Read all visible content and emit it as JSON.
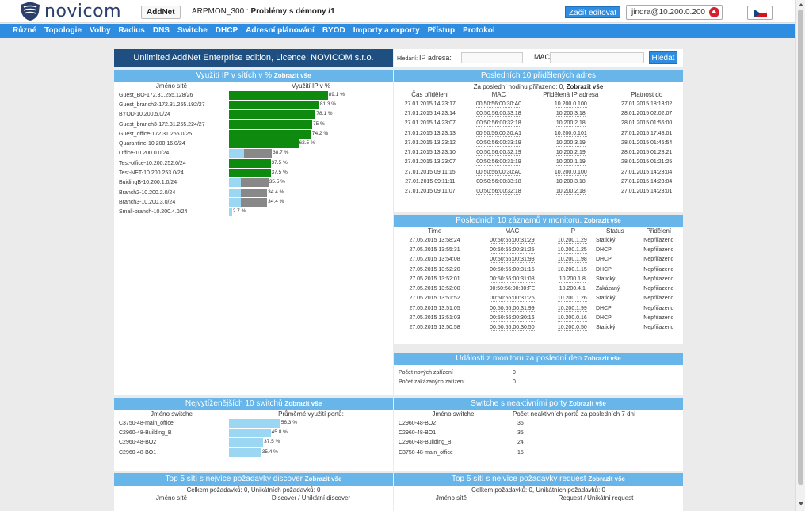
{
  "header": {
    "logo_text": "novicom",
    "addnet_label": "AddNet",
    "title_prefix": "ARPMON_300 : ",
    "title_bold": "Problémy s démony /1",
    "edit_label": "Začít editovat",
    "user": "jindra@10.200.0.200"
  },
  "nav": [
    "Různé",
    "Topologie",
    "Volby",
    "Radius",
    "DNS",
    "Switche",
    "DHCP",
    "Adresní plánování",
    "BYOD",
    "Importy a exporty",
    "Přístup",
    "Protokol"
  ],
  "license": "Unlimited AddNet Enterprise edition, Licence: NOVICOM s.r.o.",
  "search": {
    "ip_label_small": "Hledání:",
    "ip_label": "IP adresa:",
    "mac_label": "MAC:",
    "button": "Hledat"
  },
  "ip_usage": {
    "title": "Využití IP v sítích v %",
    "show_all": "Zobrazit vše",
    "col_name": "Jméno sítě",
    "col_usage": "Využití IP v %",
    "rows": [
      {
        "name": "Guest_BO-172.31.255.128/26",
        "pct": 89.1,
        "label": "89.1 %",
        "color": "#0e8a0e",
        "gray": 0
      },
      {
        "name": "Guest_branch2-172.31.255.192/27",
        "pct": 81.3,
        "label": "81.3 %",
        "color": "#0e8a0e",
        "gray": 0
      },
      {
        "name": "BYOD-10.200.5.0/24",
        "pct": 78.1,
        "label": "78.1 %",
        "color": "#0e8a0e",
        "gray": 0
      },
      {
        "name": "Guest_branch3-172.31.255.224/27",
        "pct": 75,
        "label": "75 %",
        "color": "#0e8a0e",
        "gray": 0
      },
      {
        "name": "Guest_office-172.31.255.0/25",
        "pct": 74.2,
        "label": "74.2 %",
        "color": "#0e8a0e",
        "gray": 0
      },
      {
        "name": "Quarantine-10.200.16.0/24",
        "pct": 62.5,
        "label": "62.5 %",
        "color": "#0e8a0e",
        "gray": 0
      },
      {
        "name": "Office-10.200.0.0/24",
        "pct": 38.7,
        "label": "38.7 %",
        "color": "#9bd7f2",
        "gray": 25
      },
      {
        "name": "Test-office-10.200.252.0/24",
        "pct": 37.5,
        "label": "37.5 %",
        "color": "#0e8a0e",
        "gray": 0
      },
      {
        "name": "Test-NET-10.200.253.0/24",
        "pct": 37.5,
        "label": "37.5 %",
        "color": "#0e8a0e",
        "gray": 0
      },
      {
        "name": "BuidingB-10.200.1.0/24",
        "pct": 35.5,
        "label": "35.5 %",
        "color": "#9bd7f2",
        "gray": 25
      },
      {
        "name": "Branch2-10.200.2.0/24",
        "pct": 34.4,
        "label": "34.4 %",
        "color": "#9bd7f2",
        "gray": 24
      },
      {
        "name": "Branch3-10.200.3.0/24",
        "pct": 34.4,
        "label": "34.4 %",
        "color": "#9bd7f2",
        "gray": 24
      },
      {
        "name": "Small-branch-10.200.4.0/24",
        "pct": 2.7,
        "label": "2.7 %",
        "color": "#9bd7f2",
        "gray": 0
      }
    ]
  },
  "last_assigned": {
    "title": "Posledních 10 přidělených adres",
    "subtitle": "Za poslední hodinu přiřazeno: 0,",
    "show_all": "Zobrazit vše",
    "cols": [
      "Čas přidělení",
      "MAC",
      "Přidělená IP adresa",
      "Platnost do"
    ],
    "rows": [
      [
        "27.01.2015 14:23:17",
        "00:50:56:00:30:A0",
        "10.200.0.100",
        "27.01.2015 18:13:02"
      ],
      [
        "27.01.2015 14:23:14",
        "00:50:56:00:33:18",
        "10.200.3.18",
        "28.01.2015 02:02:07"
      ],
      [
        "27.01.2015 14:23:07",
        "00:50:56:00:32:18",
        "10.200.2.18",
        "28.01.2015 01:56:00"
      ],
      [
        "27.01.2015 13:23:13",
        "00:50:56:00:30:A1",
        "10.200.0.101",
        "27.01.2015 17:48:01"
      ],
      [
        "27.01.2015 13:23:12",
        "00:50:56:00:33:19",
        "10.200.3.19",
        "28.01.2015 01:45:54"
      ],
      [
        "27.01.2015 13:23:10",
        "00:50:56:00:32:19",
        "10.200.2.19",
        "28.01.2015 01:28:21"
      ],
      [
        "27.01.2015 13:23:07",
        "00:50:56:00:31:19",
        "10.200.1.19",
        "28.01.2015 01:21:25"
      ],
      [
        "27.01.2015 09:11:15",
        "00:50:56:00:30:A0",
        "10.200.0.100",
        "27.01.2015 14:23:04"
      ],
      [
        "27.01.2015 09:11:11",
        "00:50:56:00:33:18",
        "10.200.3.18",
        "27.01.2015 14:23:04"
      ],
      [
        "27.01.2015 09:11:07",
        "00:50:56:00:32:18",
        "10.200.2.18",
        "27.01.2015 14:23:01"
      ]
    ]
  },
  "monitor": {
    "title": "Posledních 10 záznamů v monitoru.",
    "show_all": "Zobrazit vše",
    "cols": [
      "Time",
      "MAC",
      "IP",
      "Status",
      "Přidělení"
    ],
    "rows": [
      [
        "27.05.2015 13:58:24",
        "00:50:56:00:31:29",
        "10.200.1.29",
        "Statický",
        "Nepřiřazeno"
      ],
      [
        "27.05.2015 13:55:31",
        "00:50:56:00:31:25",
        "10.200.1.25",
        "DHCP",
        "Nepřiřazeno"
      ],
      [
        "27.05.2015 13:54:08",
        "00:50:56:00:31:98",
        "10.200.1.98",
        "DHCP",
        "Nepřiřazeno"
      ],
      [
        "27.05.2015 13:52:20",
        "00:50:56:00:31:15",
        "10.200.1.15",
        "DHCP",
        "Nepřiřazeno"
      ],
      [
        "27.05.2015 13:52:01",
        "00:50:56:00:31:08",
        "10.200.1.8",
        "Statický",
        "Nepřiřazeno"
      ],
      [
        "27.05.2015 13:52:00",
        "00:50:56:00:30:FE",
        "10.200.4.1",
        "Zakázaný",
        "Nepřiřazeno"
      ],
      [
        "27.05.2015 13:51:52",
        "00:50:56:00:31:26",
        "10.200.1.26",
        "Statický",
        "Nepřiřazeno"
      ],
      [
        "27.05.2015 13:51:05",
        "00:50:56:00:31:99",
        "10.200.1.99",
        "DHCP",
        "Nepřiřazeno"
      ],
      [
        "27.05.2015 13:51:03",
        "00:50:56:00:30:16",
        "10.200.0.16",
        "DHCP",
        "Nepřiřazeno"
      ],
      [
        "27.05.2015 13:50:58",
        "00:50:56:00:30:50",
        "10.200.0.50",
        "Statický",
        "Nepřiřazeno"
      ]
    ]
  },
  "events": {
    "title": "Události z monitoru za poslední den",
    "show_all": "Zobrazit vše",
    "rows": [
      [
        "Počet nových zařízení",
        "0"
      ],
      [
        "Počet zakázaných zařízení",
        "0"
      ]
    ]
  },
  "top_switches": {
    "title": "Nejvytíženějších 10 switchů",
    "show_all": "Zobrazit vše",
    "col_name": "Jméno switche",
    "col_usage": "Průměrné využití portů:",
    "rows": [
      {
        "name": "C3750-48-main_office",
        "pct": 56.3,
        "label": "56.3 %"
      },
      {
        "name": "C2960-48-Building_B",
        "pct": 45.8,
        "label": "45.8 %"
      },
      {
        "name": "C2960-48-BO2",
        "pct": 37.5,
        "label": "37.5 %"
      },
      {
        "name": "C2960-48-BO1",
        "pct": 35.4,
        "label": "35.4 %"
      }
    ]
  },
  "inactive_switches": {
    "title": "Switche s neaktivními porty",
    "show_all": "Zobrazit vše",
    "col_name": "Jméno switche",
    "col_count": "Počet neaktivních portů za posledních 7 dní",
    "rows": [
      [
        "C2960-48-BO2",
        "35"
      ],
      [
        "C2960-48-BO1",
        "35"
      ],
      [
        "C2960-48-Building_B",
        "24"
      ],
      [
        "C3750-48-main_office",
        "15"
      ]
    ]
  },
  "top_discover": {
    "title": "Top 5 sítí s nejvíce požadavky discover",
    "show_all": "Zobrazit vše",
    "subtitle": "Celkem požadavků: 0, Unikátních požadavků: 0",
    "col_name": "Jméno sítě",
    "col_val": "Discover / Unikátní discover"
  },
  "top_request": {
    "title": "Top 5 sítí s nejvíce požadavky request",
    "show_all": "Zobrazit vše",
    "subtitle": "Celkem požadavků: 0, Unikátních požadavků: 0",
    "col_name": "Jméno sítě",
    "col_val": "Request / Unikátní request"
  }
}
